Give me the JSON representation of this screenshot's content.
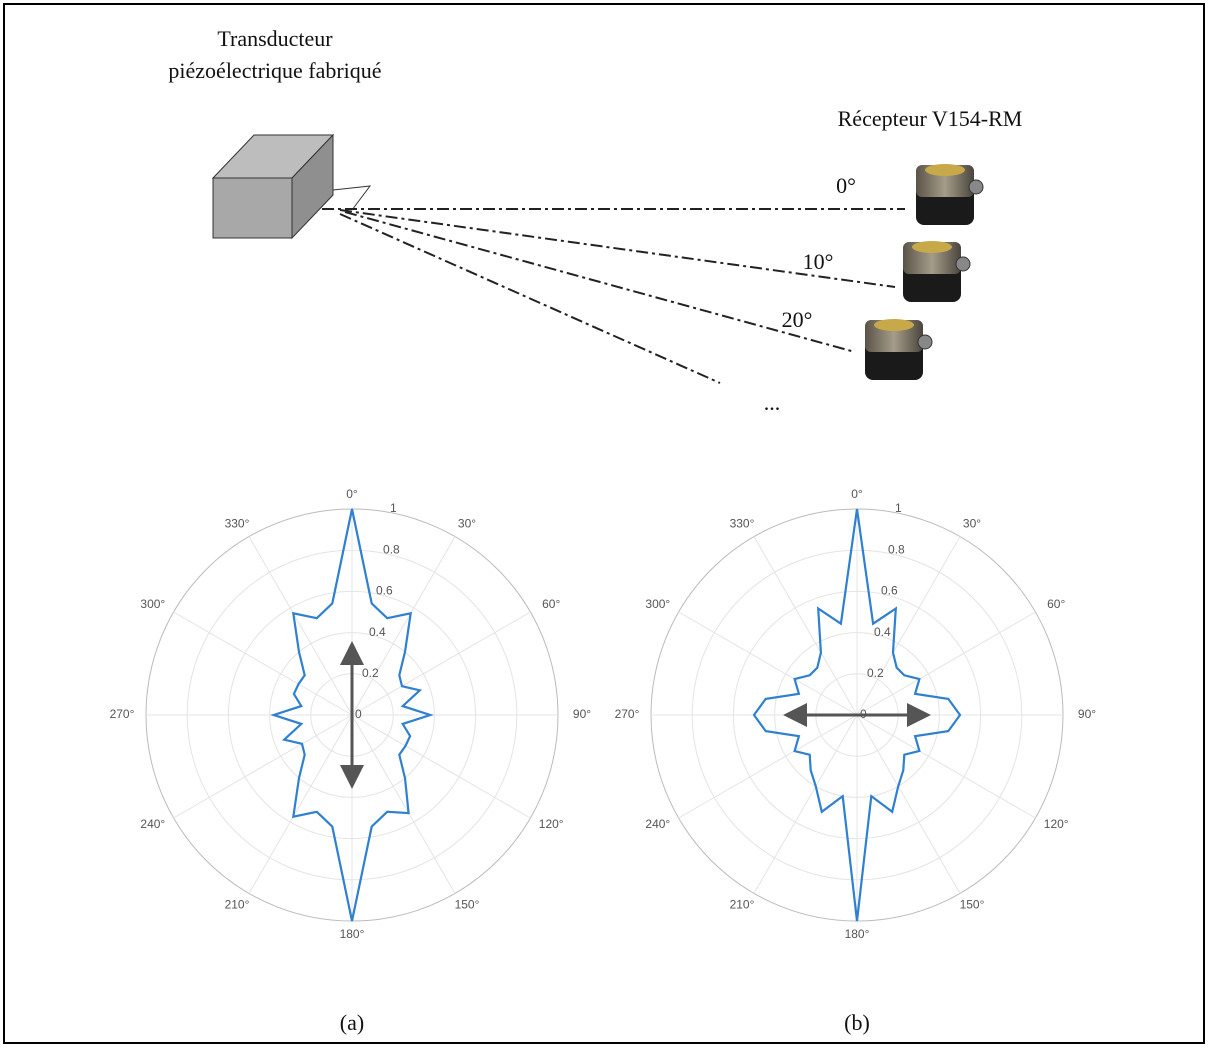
{
  "diagram": {
    "transducer_label": [
      "Transducteur",
      "piézoélectrique fabriqué"
    ],
    "receiver_label": "Récepteur V154-RM",
    "angle_labels": [
      "0°",
      "10°",
      "20°"
    ],
    "ellipsis": "..."
  },
  "chart_data": [
    {
      "type": "polar",
      "caption": "(a)",
      "theta": [
        0,
        10,
        20,
        30,
        40,
        50,
        60,
        70,
        80,
        90,
        100,
        110,
        120,
        130,
        140,
        150,
        160,
        170,
        180,
        190,
        200,
        210,
        220,
        230,
        240,
        250,
        260,
        270,
        280,
        290,
        300,
        310,
        320,
        330,
        340,
        350
      ],
      "series": [
        {
          "color": "#2f80d0",
          "values": [
            1.0,
            0.55,
            0.5,
            0.57,
            0.4,
            0.3,
            0.28,
            0.35,
            0.25,
            0.38,
            0.25,
            0.3,
            0.3,
            0.3,
            0.4,
            0.55,
            0.5,
            0.55,
            1.0,
            0.55,
            0.5,
            0.57,
            0.4,
            0.3,
            0.28,
            0.35,
            0.25,
            0.38,
            0.25,
            0.3,
            0.3,
            0.3,
            0.4,
            0.57,
            0.5,
            0.55
          ]
        }
      ],
      "rlim": [
        0,
        1
      ],
      "rticks": [
        0,
        0.2,
        0.4,
        0.6,
        0.8,
        1
      ],
      "thetaticks": [
        {
          "value": 0,
          "label": "0°"
        },
        {
          "value": 30,
          "label": "30°"
        },
        {
          "value": 60,
          "label": "60°"
        },
        {
          "value": 90,
          "label": "90°"
        },
        {
          "value": 120,
          "label": "120°"
        },
        {
          "value": 150,
          "label": "150°"
        },
        {
          "value": 180,
          "label": "180°"
        },
        {
          "value": 210,
          "label": "210°"
        },
        {
          "value": 240,
          "label": "240°"
        },
        {
          "value": 270,
          "label": "270°"
        },
        {
          "value": 300,
          "label": "300°"
        },
        {
          "value": 330,
          "label": "330°"
        }
      ],
      "grid": true
    },
    {
      "type": "polar",
      "caption": "(b)",
      "theta": [
        0,
        10,
        20,
        30,
        40,
        50,
        60,
        70,
        80,
        90,
        100,
        110,
        120,
        130,
        140,
        150,
        160,
        170,
        180,
        190,
        200,
        210,
        220,
        230,
        240,
        250,
        260,
        270,
        280,
        290,
        300,
        310,
        320,
        330,
        340,
        350
      ],
      "series": [
        {
          "color": "#2f80d0",
          "values": [
            1.0,
            0.45,
            0.55,
            0.35,
            0.3,
            0.3,
            0.35,
            0.3,
            0.45,
            0.5,
            0.45,
            0.3,
            0.35,
            0.3,
            0.35,
            0.4,
            0.5,
            0.4,
            1.0,
            0.4,
            0.5,
            0.4,
            0.35,
            0.3,
            0.35,
            0.3,
            0.45,
            0.5,
            0.45,
            0.3,
            0.35,
            0.3,
            0.3,
            0.35,
            0.55,
            0.45
          ]
        }
      ],
      "rlim": [
        0,
        1
      ],
      "rticks": [
        0,
        0.2,
        0.4,
        0.6,
        0.8,
        1
      ],
      "thetaticks": [
        {
          "value": 0,
          "label": "0°"
        },
        {
          "value": 30,
          "label": "30°"
        },
        {
          "value": 60,
          "label": "60°"
        },
        {
          "value": 90,
          "label": "90°"
        },
        {
          "value": 120,
          "label": "120°"
        },
        {
          "value": 150,
          "label": "150°"
        },
        {
          "value": 180,
          "label": "180°"
        },
        {
          "value": 210,
          "label": "210°"
        },
        {
          "value": 240,
          "label": "240°"
        },
        {
          "value": 270,
          "label": "270°"
        },
        {
          "value": 300,
          "label": "300°"
        },
        {
          "value": 330,
          "label": "330°"
        }
      ],
      "grid": true
    }
  ]
}
